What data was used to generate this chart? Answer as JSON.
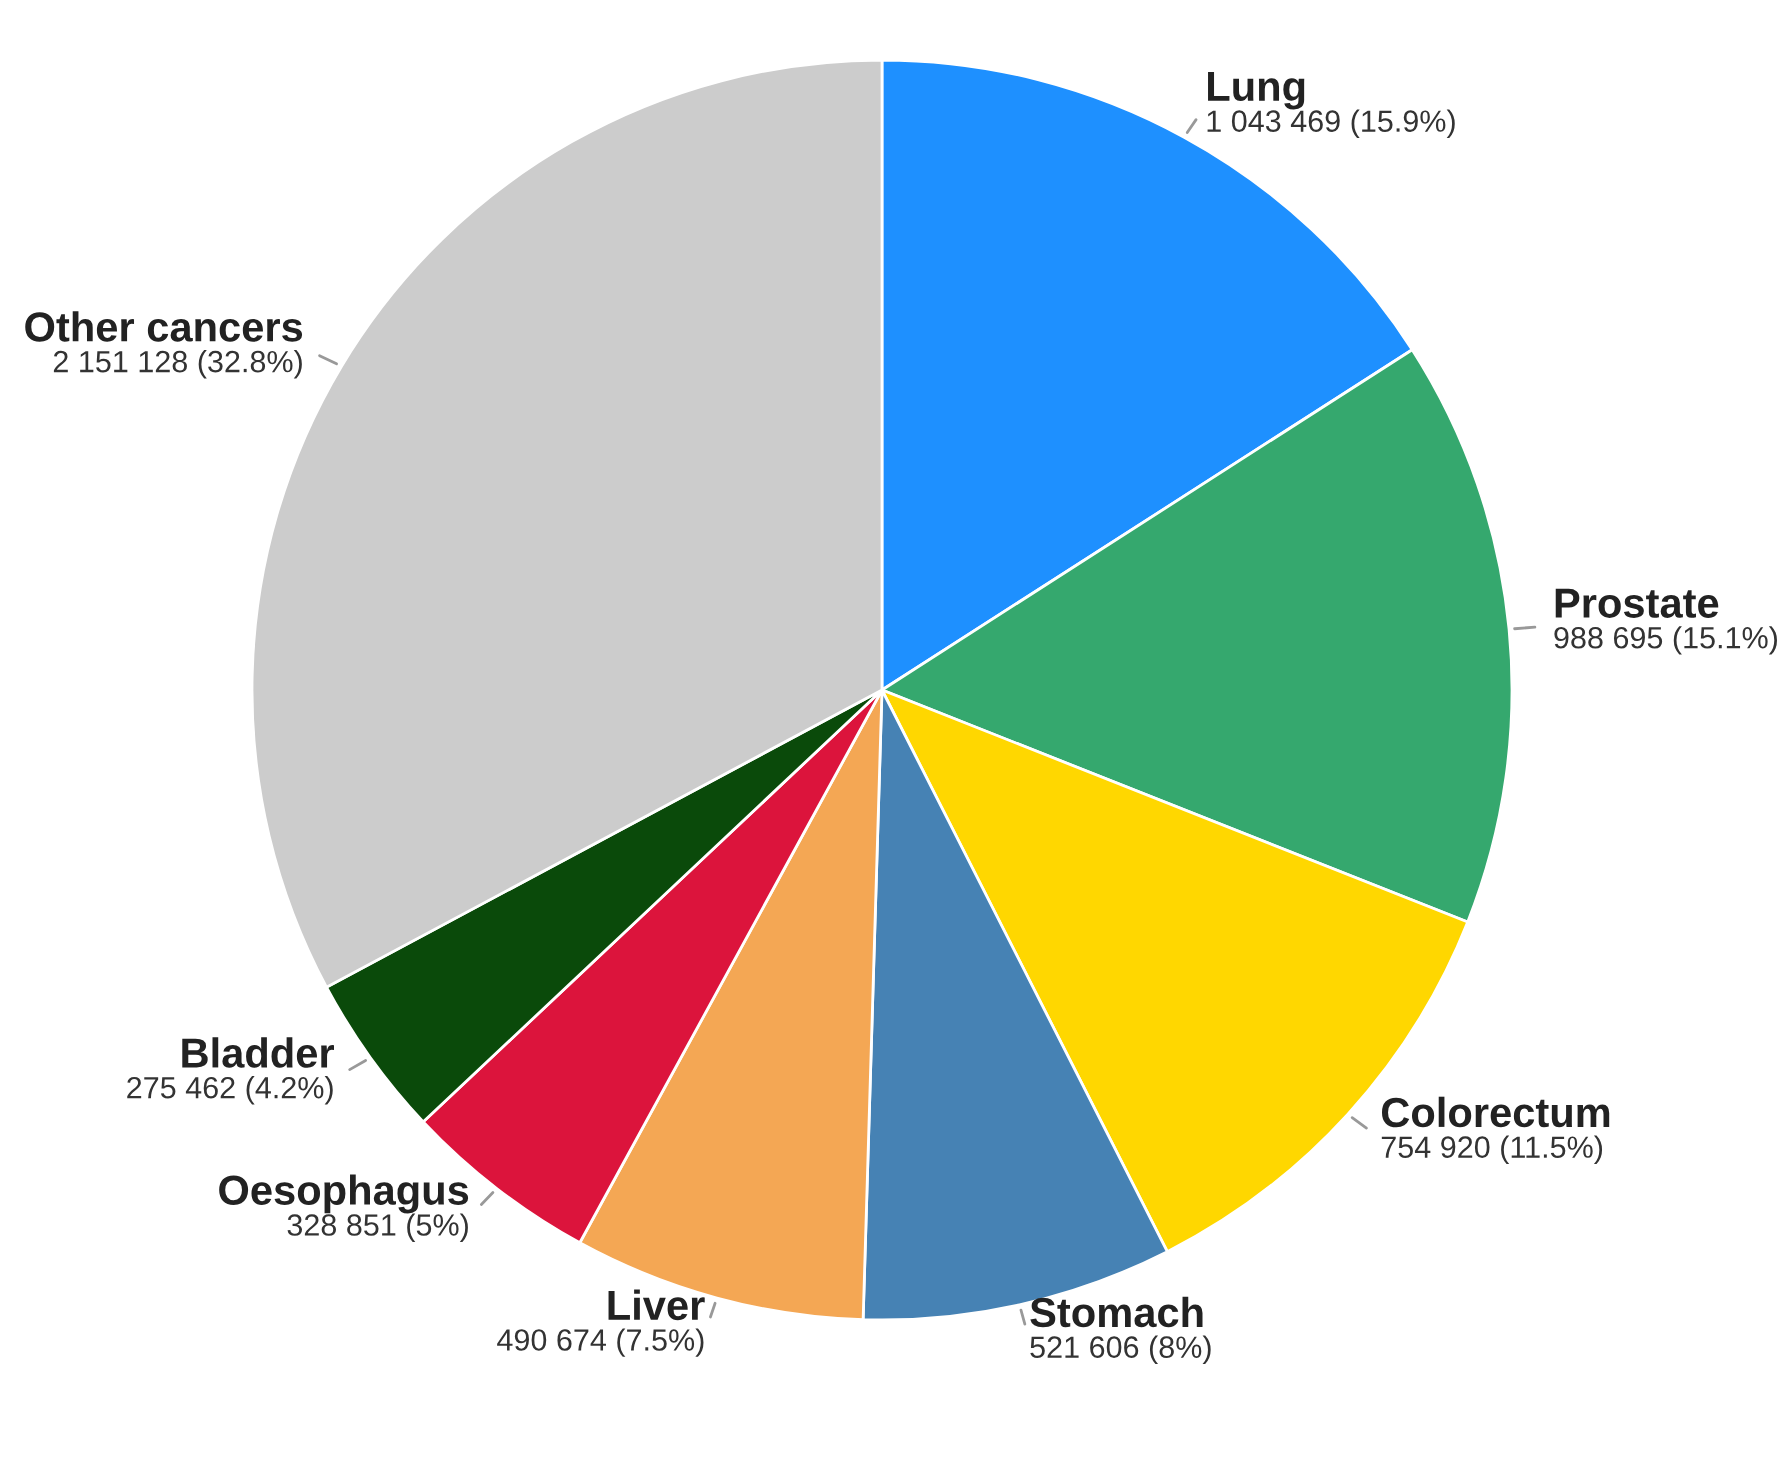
{
  "chart_data": {
    "type": "pie",
    "categories": [
      "Lung",
      "Prostate",
      "Colorectum",
      "Stomach",
      "Liver",
      "Oesophagus",
      "Bladder",
      "Other cancers"
    ],
    "values": [
      1043469,
      988695,
      754920,
      521606,
      490674,
      328851,
      275462,
      2151128
    ],
    "value_labels": [
      "1 043 469 (15.9%)",
      "988 695 (15.1%)",
      "754 920 (11.5%)",
      "521 606 (8%)",
      "490 674 (7.5%)",
      "328 851 (5%)",
      "275 462 (4.2%)",
      "2 151 128 (32.8%)"
    ],
    "colors": [
      "#1e90ff",
      "#35a86e",
      "#ffd700",
      "#4682b4",
      "#f4a754",
      "#dc143c",
      "#0a4a0a",
      "#cccccc"
    ]
  }
}
